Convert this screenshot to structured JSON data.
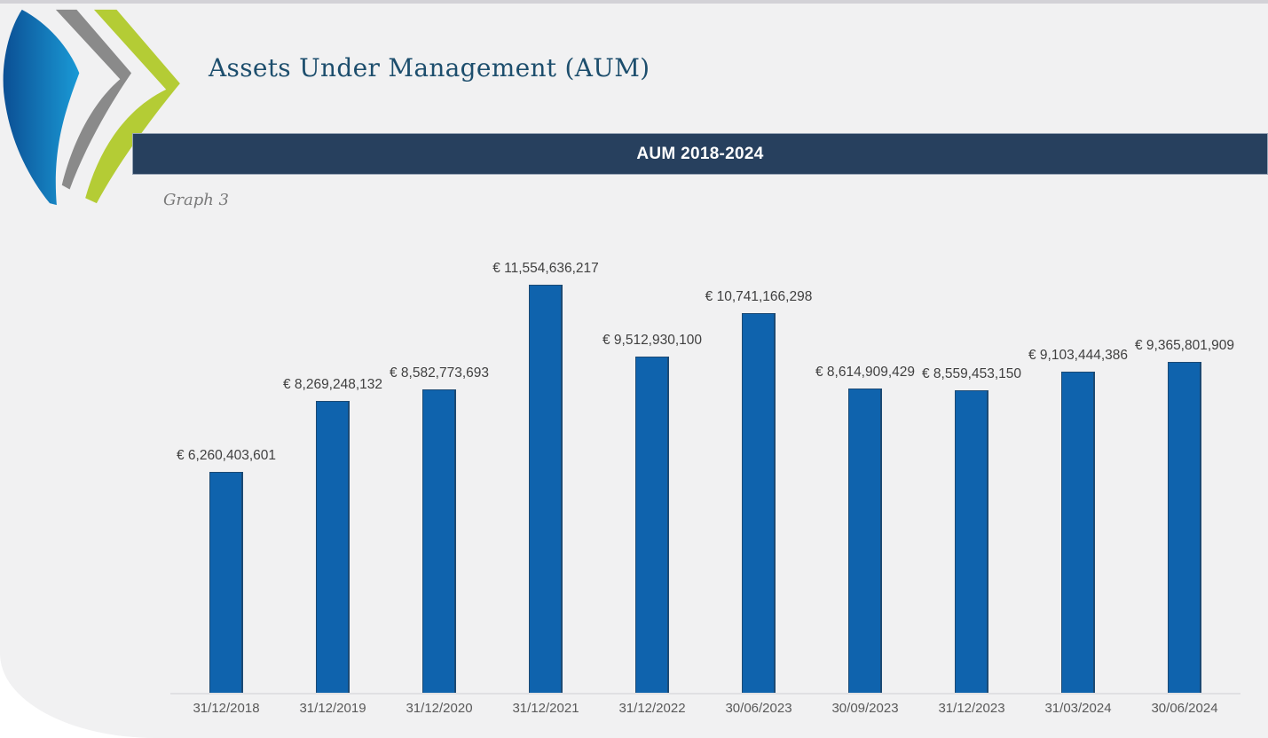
{
  "header": {
    "title": "Assets Under Management (AUM)",
    "banner_title": "AUM 2018-2024",
    "caption": "Graph 3"
  },
  "chart_data": {
    "type": "bar",
    "title": "AUM 2018-2024",
    "categories": [
      "31/12/2018",
      "31/12/2019",
      "31/12/2020",
      "31/12/2021",
      "31/12/2022",
      "30/06/2023",
      "30/09/2023",
      "31/12/2023",
      "31/03/2024",
      "30/06/2024"
    ],
    "values": [
      6260403601,
      8269248132,
      8582773693,
      11554636217,
      9512930100,
      10741166298,
      8614909429,
      8559453150,
      9103444386,
      9365801909
    ],
    "value_labels": [
      "€ 6,260,403,601",
      "€ 8,269,248,132",
      "€ 8,582,773,693",
      "€ 11,554,636,217",
      "€ 9,512,930,100",
      "€ 10,741,166,298",
      "€ 8,614,909,429",
      "€ 8,559,453,150",
      "€ 9,103,444,386",
      "€ 9,365,801,909"
    ],
    "currency_symbol": "€",
    "xlabel": "",
    "ylabel": "",
    "ylim": [
      0,
      11554636217
    ],
    "grid": false,
    "legend": false,
    "bar_color": "#0f63ad",
    "bar_border_color": "#1c4a74",
    "value_label_color": "#404040",
    "axis_label_color": "#595959"
  },
  "logo": {
    "name": "triple-chevron-logo",
    "colors": {
      "blue_dark": "#0b4f94",
      "blue_light": "#1a9ad6",
      "gray": "#8a8a8a",
      "green": "#b4cc35"
    }
  },
  "colors": {
    "page_bg": "#f1f1f2",
    "top_strip": "#d3d2d7",
    "banner_bg": "#27405e",
    "banner_border": "#98a5b6",
    "banner_text": "#ffffff",
    "title_text": "#1d4e6d",
    "caption_text": "#7b7b7b",
    "axis_line": "#e0e0e3"
  }
}
